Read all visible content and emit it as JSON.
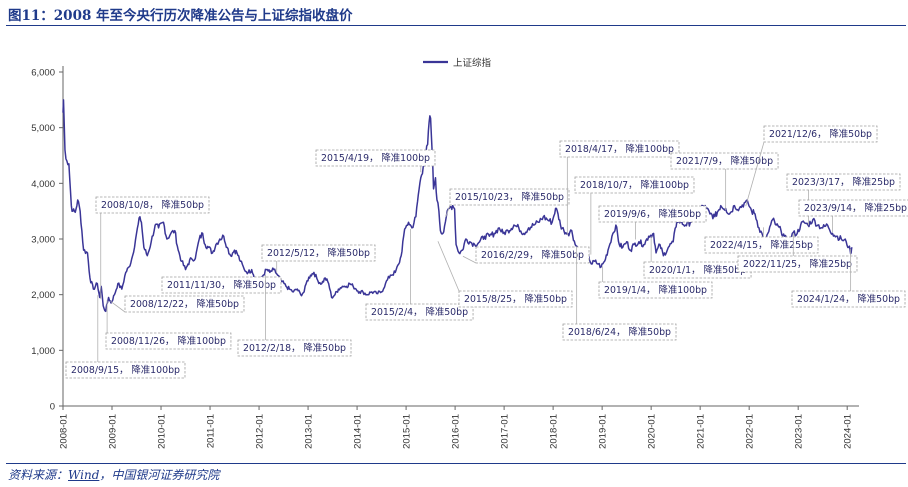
{
  "title": "图11：2008 年至今央行历次降准公告与上证综指收盘价",
  "source": {
    "prefix": "资料来源：",
    "link": "Wind",
    "suffix": "，中国银河证券研究院"
  },
  "colors": {
    "series": "#3a3597",
    "accent": "#1f3a8a",
    "box": "#a0a0a0",
    "leader": "#b0b0b0"
  },
  "chart_data": {
    "type": "line",
    "title": "图11：2008 年至今央行历次降准公告与上证综指收盘价",
    "xlabel": "",
    "ylabel": "",
    "ylim": [
      0,
      6000
    ],
    "xlim": [
      2008.0,
      2024.2
    ],
    "yticks": [
      0,
      1000,
      2000,
      3000,
      4000,
      5000,
      6000
    ],
    "ytick_labels": [
      "0",
      "1,000",
      "2,000",
      "3,000",
      "4,000",
      "5,000",
      "6,000"
    ],
    "xtick_labels": [
      "2008-01",
      "2009-01",
      "2010-01",
      "2011-01",
      "2012-01",
      "2013-01",
      "2014-01",
      "2015-01",
      "2016-01",
      "2017-01",
      "2018-01",
      "2019-01",
      "2020-01",
      "2021-01",
      "2022-01",
      "2023-01",
      "2024-01"
    ],
    "legend": {
      "label": "上证综指",
      "position": "top-center"
    },
    "series": [
      {
        "name": "上证综指",
        "points": [
          [
            2008.0,
            5270
          ],
          [
            2008.01,
            5500
          ],
          [
            2008.04,
            4600
          ],
          [
            2008.08,
            4400
          ],
          [
            2008.12,
            4350
          ],
          [
            2008.17,
            3600
          ],
          [
            2008.2,
            3500
          ],
          [
            2008.25,
            3480
          ],
          [
            2008.3,
            3700
          ],
          [
            2008.35,
            3500
          ],
          [
            2008.42,
            2800
          ],
          [
            2008.5,
            2750
          ],
          [
            2008.55,
            2300
          ],
          [
            2008.62,
            2100
          ],
          [
            2008.7,
            2200
          ],
          [
            2008.75,
            1950
          ],
          [
            2008.78,
            2150
          ],
          [
            2008.82,
            1800
          ],
          [
            2008.87,
            1700
          ],
          [
            2008.93,
            1950
          ],
          [
            2008.98,
            1850
          ],
          [
            2009.05,
            2000
          ],
          [
            2009.12,
            2200
          ],
          [
            2009.2,
            2100
          ],
          [
            2009.28,
            2400
          ],
          [
            2009.35,
            2500
          ],
          [
            2009.42,
            2700
          ],
          [
            2009.5,
            3100
          ],
          [
            2009.57,
            3400
          ],
          [
            2009.6,
            3300
          ],
          [
            2009.65,
            2850
          ],
          [
            2009.72,
            2700
          ],
          [
            2009.8,
            2950
          ],
          [
            2009.88,
            3250
          ],
          [
            2009.95,
            3200
          ],
          [
            2010.05,
            3300
          ],
          [
            2010.12,
            3000
          ],
          [
            2010.2,
            3100
          ],
          [
            2010.28,
            3150
          ],
          [
            2010.35,
            2800
          ],
          [
            2010.42,
            2600
          ],
          [
            2010.5,
            2450
          ],
          [
            2010.55,
            2550
          ],
          [
            2010.62,
            2650
          ],
          [
            2010.7,
            2650
          ],
          [
            2010.78,
            3000
          ],
          [
            2010.85,
            3100
          ],
          [
            2010.9,
            2900
          ],
          [
            2010.97,
            2850
          ],
          [
            2011.05,
            2750
          ],
          [
            2011.12,
            2900
          ],
          [
            2011.2,
            3000
          ],
          [
            2011.28,
            3050
          ],
          [
            2011.35,
            2850
          ],
          [
            2011.42,
            2700
          ],
          [
            2011.5,
            2800
          ],
          [
            2011.55,
            2750
          ],
          [
            2011.62,
            2600
          ],
          [
            2011.7,
            2450
          ],
          [
            2011.78,
            2400
          ],
          [
            2011.85,
            2450
          ],
          [
            2011.92,
            2300
          ],
          [
            2011.98,
            2200
          ],
          [
            2012.05,
            2300
          ],
          [
            2012.15,
            2450
          ],
          [
            2012.22,
            2400
          ],
          [
            2012.3,
            2450
          ],
          [
            2012.38,
            2350
          ],
          [
            2012.45,
            2250
          ],
          [
            2012.55,
            2150
          ],
          [
            2012.62,
            2100
          ],
          [
            2012.7,
            2050
          ],
          [
            2012.78,
            2100
          ],
          [
            2012.85,
            2000
          ],
          [
            2012.92,
            2050
          ],
          [
            2012.98,
            2250
          ],
          [
            2013.05,
            2350
          ],
          [
            2013.12,
            2400
          ],
          [
            2013.2,
            2250
          ],
          [
            2013.28,
            2200
          ],
          [
            2013.35,
            2300
          ],
          [
            2013.42,
            2200
          ],
          [
            2013.48,
            1950
          ],
          [
            2013.55,
            2000
          ],
          [
            2013.62,
            2100
          ],
          [
            2013.7,
            2150
          ],
          [
            2013.78,
            2150
          ],
          [
            2013.85,
            2200
          ],
          [
            2013.92,
            2150
          ],
          [
            2013.98,
            2100
          ],
          [
            2014.05,
            2050
          ],
          [
            2014.12,
            2050
          ],
          [
            2014.2,
            2000
          ],
          [
            2014.3,
            2050
          ],
          [
            2014.4,
            2020
          ],
          [
            2014.5,
            2050
          ],
          [
            2014.58,
            2200
          ],
          [
            2014.68,
            2350
          ],
          [
            2014.78,
            2400
          ],
          [
            2014.85,
            2550
          ],
          [
            2014.9,
            2700
          ],
          [
            2014.95,
            3050
          ],
          [
            2014.99,
            3200
          ],
          [
            2015.05,
            3300
          ],
          [
            2015.12,
            3200
          ],
          [
            2015.2,
            3400
          ],
          [
            2015.25,
            3800
          ],
          [
            2015.3,
            4100
          ],
          [
            2015.35,
            4300
          ],
          [
            2015.4,
            4500
          ],
          [
            2015.44,
            4700
          ],
          [
            2015.47,
            5100
          ],
          [
            2015.5,
            5170
          ],
          [
            2015.53,
            4600
          ],
          [
            2015.56,
            3900
          ],
          [
            2015.6,
            4100
          ],
          [
            2015.63,
            3700
          ],
          [
            2015.67,
            3500
          ],
          [
            2015.7,
            3150
          ],
          [
            2015.75,
            3100
          ],
          [
            2015.82,
            3400
          ],
          [
            2015.88,
            3550
          ],
          [
            2015.95,
            3600
          ],
          [
            2015.99,
            3540
          ],
          [
            2016.02,
            2900
          ],
          [
            2016.08,
            2750
          ],
          [
            2016.15,
            2800
          ],
          [
            2016.22,
            3000
          ],
          [
            2016.3,
            2950
          ],
          [
            2016.4,
            2900
          ],
          [
            2016.5,
            2950
          ],
          [
            2016.6,
            3050
          ],
          [
            2016.7,
            3050
          ],
          [
            2016.8,
            3100
          ],
          [
            2016.9,
            3200
          ],
          [
            2016.98,
            3100
          ],
          [
            2017.08,
            3150
          ],
          [
            2017.2,
            3250
          ],
          [
            2017.3,
            3200
          ],
          [
            2017.4,
            3100
          ],
          [
            2017.5,
            3200
          ],
          [
            2017.6,
            3250
          ],
          [
            2017.7,
            3300
          ],
          [
            2017.8,
            3400
          ],
          [
            2017.88,
            3350
          ],
          [
            2017.98,
            3300
          ],
          [
            2018.05,
            3550
          ],
          [
            2018.1,
            3450
          ],
          [
            2018.15,
            3250
          ],
          [
            2018.22,
            3150
          ],
          [
            2018.3,
            3100
          ],
          [
            2018.38,
            3150
          ],
          [
            2018.45,
            2900
          ],
          [
            2018.5,
            2850
          ],
          [
            2018.6,
            2750
          ],
          [
            2018.7,
            2750
          ],
          [
            2018.78,
            2550
          ],
          [
            2018.85,
            2600
          ],
          [
            2018.92,
            2550
          ],
          [
            2018.98,
            2500
          ],
          [
            2019.05,
            2600
          ],
          [
            2019.12,
            2800
          ],
          [
            2019.2,
            3050
          ],
          [
            2019.28,
            3250
          ],
          [
            2019.35,
            2900
          ],
          [
            2019.42,
            2850
          ],
          [
            2019.5,
            2950
          ],
          [
            2019.58,
            2800
          ],
          [
            2019.65,
            2900
          ],
          [
            2019.75,
            2950
          ],
          [
            2019.85,
            2900
          ],
          [
            2019.95,
            3050
          ],
          [
            2020.05,
            3100
          ],
          [
            2020.1,
            2750
          ],
          [
            2020.18,
            2900
          ],
          [
            2020.25,
            2700
          ],
          [
            2020.35,
            2850
          ],
          [
            2020.45,
            2950
          ],
          [
            2020.53,
            3350
          ],
          [
            2020.6,
            3300
          ],
          [
            2020.7,
            3250
          ],
          [
            2020.8,
            3300
          ],
          [
            2020.88,
            3400
          ],
          [
            2020.98,
            3450
          ],
          [
            2021.05,
            3600
          ],
          [
            2021.12,
            3550
          ],
          [
            2021.2,
            3450
          ],
          [
            2021.3,
            3400
          ],
          [
            2021.42,
            3600
          ],
          [
            2021.52,
            3550
          ],
          [
            2021.6,
            3450
          ],
          [
            2021.7,
            3600
          ],
          [
            2021.8,
            3550
          ],
          [
            2021.9,
            3650
          ],
          [
            2021.98,
            3640
          ],
          [
            2022.05,
            3500
          ],
          [
            2022.12,
            3450
          ],
          [
            2022.2,
            3200
          ],
          [
            2022.28,
            3050
          ],
          [
            2022.33,
            2900
          ],
          [
            2022.38,
            3100
          ],
          [
            2022.48,
            3350
          ],
          [
            2022.55,
            3250
          ],
          [
            2022.65,
            3150
          ],
          [
            2022.72,
            3050
          ],
          [
            2022.8,
            2900
          ],
          [
            2022.88,
            3100
          ],
          [
            2022.98,
            3100
          ],
          [
            2023.05,
            3250
          ],
          [
            2023.12,
            3300
          ],
          [
            2023.2,
            3250
          ],
          [
            2023.3,
            3350
          ],
          [
            2023.4,
            3250
          ],
          [
            2023.5,
            3200
          ],
          [
            2023.6,
            3250
          ],
          [
            2023.7,
            3100
          ],
          [
            2023.78,
            3050
          ],
          [
            2023.88,
            3000
          ],
          [
            2023.98,
            2950
          ],
          [
            2024.03,
            2850
          ],
          [
            2024.06,
            2800
          ],
          [
            2024.08,
            2750
          ],
          [
            2024.1,
            2850
          ]
        ]
      }
    ],
    "annotations": [
      {
        "label": "2008/9/15， 降准100bp",
        "date": 2008.71,
        "value": 1990
      },
      {
        "label": "2008/10/8， 降准50bp",
        "date": 2008.77,
        "value": 1920
      },
      {
        "label": "2008/11/26， 降准100bp",
        "date": 2008.9,
        "value": 1900
      },
      {
        "label": "2008/12/22， 降准50bp",
        "date": 2008.97,
        "value": 1880
      },
      {
        "label": "2011/11/30， 降准50bp",
        "date": 2011.92,
        "value": 2330
      },
      {
        "label": "2012/2/18， 降准50bp",
        "date": 2012.13,
        "value": 2360
      },
      {
        "label": "2012/5/12， 降准50bp",
        "date": 2012.36,
        "value": 2400
      },
      {
        "label": "2015/2/4， 降准50bp",
        "date": 2015.09,
        "value": 3180
      },
      {
        "label": "2015/4/19， 降准100bp",
        "date": 2015.3,
        "value": 4200
      },
      {
        "label": "2015/8/25， 降准50bp",
        "date": 2015.65,
        "value": 2960
      },
      {
        "label": "2015/10/23， 降准50bp",
        "date": 2015.81,
        "value": 3400
      },
      {
        "label": "2016/2/29， 降准50bp",
        "date": 2016.16,
        "value": 2690
      },
      {
        "label": "2018/4/17， 降准100bp",
        "date": 2018.29,
        "value": 3070
      },
      {
        "label": "2018/6/24， 降准50bp",
        "date": 2018.48,
        "value": 2860
      },
      {
        "label": "2018/10/7， 降准100bp",
        "date": 2018.77,
        "value": 2720
      },
      {
        "label": "2019/1/4， 降准100bp",
        "date": 2019.01,
        "value": 2510
      },
      {
        "label": "2019/9/6， 降准50bp",
        "date": 2019.68,
        "value": 2990
      },
      {
        "label": "2020/1/1， 降准50bp",
        "date": 2020.0,
        "value": 3050
      },
      {
        "label": "2021/7/9， 降准50bp",
        "date": 2021.52,
        "value": 3520
      },
      {
        "label": "2021/12/6， 降准50bp",
        "date": 2021.93,
        "value": 3590
      },
      {
        "label": "2022/4/15， 降准25bp",
        "date": 2022.29,
        "value": 3210
      },
      {
        "label": "2022/11/25， 降准25bp",
        "date": 2022.9,
        "value": 3100
      },
      {
        "label": "2023/3/17， 降准25bp",
        "date": 2023.21,
        "value": 3250
      },
      {
        "label": "2023/9/14， 降准25bp",
        "date": 2023.7,
        "value": 3120
      },
      {
        "label": "2024/1/24， 降准50bp",
        "date": 2024.07,
        "value": 2820
      }
    ]
  }
}
